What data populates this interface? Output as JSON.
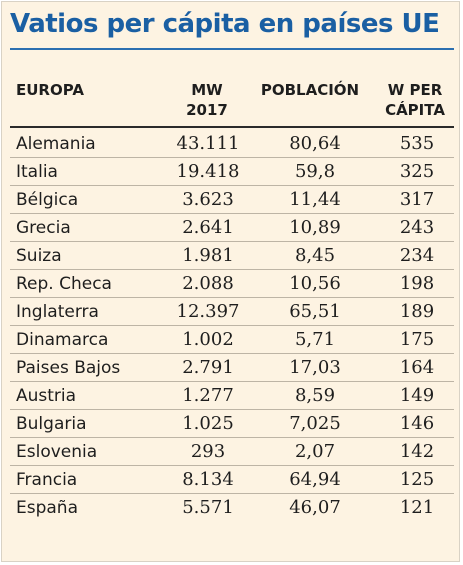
{
  "title": "Vatios per cápita en países UE",
  "headers": {
    "europa": "EUROPA",
    "mw_line1": "MW",
    "mw_line2": "2017",
    "poblacion": "POBLACIÓN",
    "w_line1": "W PER",
    "w_line2": "CÁPITA"
  },
  "chart_data": {
    "type": "table",
    "title": "Vatios per cápita en países UE",
    "columns": [
      "EUROPA",
      "MW 2017",
      "POBLACIÓN",
      "W PER CÁPITA"
    ],
    "rows": [
      {
        "country": "Alemania",
        "mw": "43.111",
        "poblacion": "80,64",
        "w": "535"
      },
      {
        "country": "Italia",
        "mw": "19.418",
        "poblacion": "59,8",
        "w": "325"
      },
      {
        "country": "Bélgica",
        "mw": "3.623",
        "poblacion": "11,44",
        "w": "317"
      },
      {
        "country": "Grecia",
        "mw": "2.641",
        "poblacion": "10,89",
        "w": "243"
      },
      {
        "country": "Suiza",
        "mw": "1.981",
        "poblacion": "8,45",
        "w": "234"
      },
      {
        "country": "Rep. Checa",
        "mw": "2.088",
        "poblacion": "10,56",
        "w": "198"
      },
      {
        "country": "Inglaterra",
        "mw": "12.397",
        "poblacion": "65,51",
        "w": "189"
      },
      {
        "country": "Dinamarca",
        "mw": "1.002",
        "poblacion": "5,71",
        "w": "175"
      },
      {
        "country": "Paises Bajos",
        "mw": "2.791",
        "poblacion": "17,03",
        "w": "164"
      },
      {
        "country": "Austria",
        "mw": "1.277",
        "poblacion": "8,59",
        "w": "149"
      },
      {
        "country": "Bulgaria",
        "mw": "1.025",
        "poblacion": "7,025",
        "w": "146"
      },
      {
        "country": "Eslovenia",
        "mw": "293",
        "poblacion": "2,07",
        "w": "142"
      },
      {
        "country": "Francia",
        "mw": "8.134",
        "poblacion": "64,94",
        "w": "125"
      },
      {
        "country": "España",
        "mw": "5.571",
        "poblacion": "46,07",
        "w": "121"
      }
    ]
  },
  "colors": {
    "title": "#1a5fa3",
    "background": "#fdf3e2",
    "text": "#1e1e1e"
  }
}
